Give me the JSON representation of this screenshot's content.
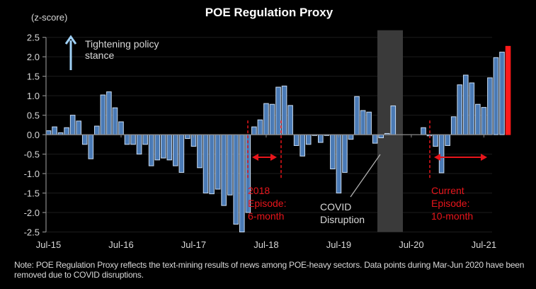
{
  "chart_data": {
    "type": "bar",
    "title": "POE Regulation Proxy",
    "ylabel": "(z-score)",
    "xlabel": "",
    "ylim": [
      -2.5,
      2.5
    ],
    "yticks": [
      2.5,
      2.0,
      1.5,
      1.0,
      0.5,
      0.0,
      -0.5,
      -1.0,
      -1.5,
      -2.0,
      -2.5
    ],
    "ytick_labels": [
      "2.5",
      "2.0",
      "1.5",
      "1.0",
      "0.5",
      "0.0",
      "-0.5",
      "-1.0",
      "-1.5",
      "-2.0",
      "-2.5"
    ],
    "xtick_labels": [
      "Jul-15",
      "Jul-16",
      "Jul-17",
      "Jul-18",
      "Jul-19",
      "Jul-20",
      "Jul-21"
    ],
    "x_start": "Jul-15",
    "x_end": "Aug-21",
    "frequency": "monthly",
    "grid": true,
    "series": [
      {
        "name": "POE Regulation Proxy",
        "color": "#4a7ab5",
        "edge_color": "#c9dcf2",
        "highlight_color": "#ff1a1a",
        "highlight_last": true,
        "values": [
          0.1,
          0.2,
          0.05,
          0.18,
          0.5,
          0.35,
          -0.25,
          -0.62,
          0.22,
          1.02,
          1.1,
          0.69,
          0.33,
          -0.25,
          -0.25,
          -0.5,
          -0.25,
          -0.8,
          -0.65,
          -0.6,
          -0.65,
          -0.8,
          -0.97,
          -0.1,
          -0.3,
          -0.85,
          -1.5,
          -1.52,
          -1.4,
          -1.82,
          -1.55,
          -2.3,
          -2.5,
          -2.0,
          0.2,
          0.38,
          0.8,
          0.78,
          1.22,
          1.25,
          0.75,
          -0.28,
          -0.55,
          -0.25,
          -0.02,
          -0.2,
          -0.02,
          -0.88,
          -1.5,
          -0.97,
          -0.12,
          0.98,
          0.62,
          0.58,
          -0.22,
          -0.08,
          0.03,
          0.74,
          null,
          null,
          null,
          null,
          0.18,
          -0.03,
          -0.3,
          -0.98,
          -0.28,
          0.46,
          1.28,
          1.53,
          1.33,
          0.78,
          0.7,
          1.46,
          1.98,
          2.12,
          2.27
        ]
      }
    ],
    "annotations": {
      "arrow_label": "Tightening policy stance",
      "covid_shade": {
        "from": "Mar-20",
        "to": "Jun-20",
        "label": "COVID Disruption"
      },
      "episode_2018": {
        "label_lines": [
          "2018",
          "Episode:",
          "6-month"
        ],
        "from": "Jun-18",
        "to": "Dec-18"
      },
      "episode_current": {
        "label_lines": [
          "Current",
          "Episode:",
          "10-month"
        ],
        "from": "Oct-20",
        "to": "Aug-21"
      }
    }
  },
  "labels": {
    "title": "POE Regulation Proxy",
    "yunit": "(z-score)",
    "arrow_line1": "Tightening policy",
    "arrow_line2": "stance",
    "ep2018_1": "2018",
    "ep2018_2": "Episode:",
    "ep2018_3": "6-month",
    "covid_1": "COVID",
    "covid_2": "Disruption",
    "epcur_1": "Current",
    "epcur_2": "Episode:",
    "epcur_3": "10-month"
  },
  "note": "Note: POE Regulation Proxy reflects the text-mining results of news among POE-heavy sectors. Data points during Mar-Jun 2020 have been removed due to COVID disruptions.",
  "colors": {
    "background": "#000000",
    "bar": "#4a7ab5",
    "bar_edge": "#c9dcf2",
    "highlight": "#ff1a1a",
    "annotation_red": "#e8151b",
    "covid_shade": "#3a3a3a",
    "arrow": "#9fd0f5"
  }
}
